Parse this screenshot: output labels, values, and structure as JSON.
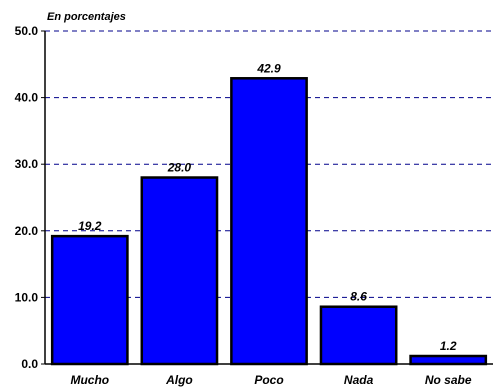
{
  "chart_data": {
    "type": "bar",
    "ylabel": "En porcentajes",
    "categories": [
      "Mucho",
      "Algo",
      "Poco",
      "Nada",
      "No sabe"
    ],
    "values": [
      19.2,
      28.0,
      42.9,
      8.6,
      1.2
    ],
    "value_labels": [
      "19.2",
      "28.0",
      "42.9",
      "8.6",
      "1.2"
    ],
    "ylim": [
      0,
      50
    ],
    "yticks": [
      "0.0",
      "10.0",
      "20.0",
      "30.0",
      "40.0",
      "50.0"
    ],
    "grid": true,
    "legend": "none",
    "colors": {
      "bar": "#0000ff",
      "bar_edge": "#000000",
      "grid": "#00008b",
      "axis": "#000000"
    }
  }
}
